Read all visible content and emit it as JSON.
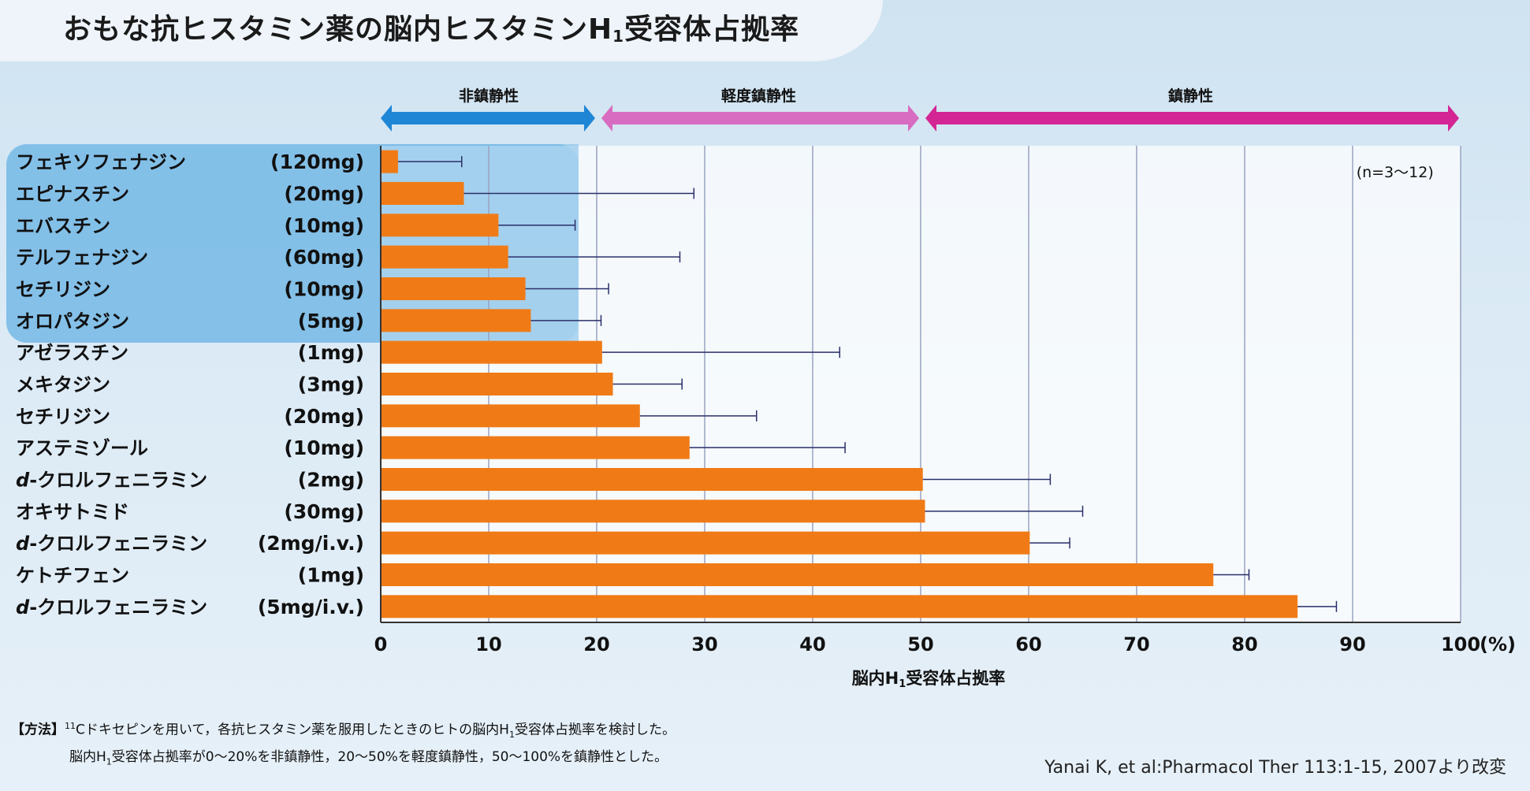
{
  "header": {
    "title_part1": "おもな抗ヒスタミン薬の脳内ヒスタミンH",
    "title_sub": "1",
    "title_part2": "受容体占拠率"
  },
  "chart_data": {
    "type": "bar",
    "orientation": "horizontal",
    "categories": [
      {
        "name": "フェキソフェナジン",
        "dose": "(120mg)",
        "italic_prefix": ""
      },
      {
        "name": "エピナスチン",
        "dose": "(20mg)",
        "italic_prefix": ""
      },
      {
        "name": "エバスチン",
        "dose": "(10mg)",
        "italic_prefix": ""
      },
      {
        "name": "テルフェナジン",
        "dose": "(60mg)",
        "italic_prefix": ""
      },
      {
        "name": "セチリジン",
        "dose": "(10mg)",
        "italic_prefix": ""
      },
      {
        "name": "オロパタジン",
        "dose": "(5mg)",
        "italic_prefix": ""
      },
      {
        "name": "アゼラスチン",
        "dose": "(1mg)",
        "italic_prefix": ""
      },
      {
        "name": "メキタジン",
        "dose": "(3mg)",
        "italic_prefix": ""
      },
      {
        "name": "セチリジン",
        "dose": "(20mg)",
        "italic_prefix": ""
      },
      {
        "name": "アステミゾール",
        "dose": "(10mg)",
        "italic_prefix": ""
      },
      {
        "name": "-クロルフェニラミン",
        "dose": "(2mg)",
        "italic_prefix": "d"
      },
      {
        "name": "オキサトミド",
        "dose": "(30mg)",
        "italic_prefix": ""
      },
      {
        "name": "-クロルフェニラミン",
        "dose": "(2mg/i.v.)",
        "italic_prefix": "d"
      },
      {
        "name": "ケトチフェン",
        "dose": "(1mg)",
        "italic_prefix": ""
      },
      {
        "name": "-クロルフェニラミン",
        "dose": "(5mg/i.v.)",
        "italic_prefix": "d"
      }
    ],
    "values": [
      1.6,
      7.7,
      10.9,
      11.8,
      13.4,
      13.9,
      20.5,
      21.5,
      24.0,
      28.6,
      50.2,
      50.4,
      60.1,
      77.1,
      84.9
    ],
    "error_upper": [
      7.5,
      29.0,
      18.0,
      27.7,
      21.1,
      20.4,
      42.5,
      27.9,
      34.8,
      43.0,
      62.0,
      65.0,
      63.8,
      80.4,
      88.5
    ],
    "highlighted_count": 6,
    "xlim": [
      0,
      100
    ],
    "x_ticks": [
      "0",
      "10",
      "20",
      "30",
      "40",
      "50",
      "60",
      "70",
      "80",
      "90",
      "100"
    ],
    "x_unit": "(%)",
    "xlabel_part1": "脳内H",
    "xlabel_sub": "1",
    "xlabel_part2": "受容体占拠率",
    "annotation": "(n=3〜12)",
    "ranges": [
      {
        "label": "非鎮静性",
        "from": 0,
        "to": 20,
        "color": "#1f86d6"
      },
      {
        "label": "軽度鎮静性",
        "from": 20,
        "to": 50,
        "color": "#d86cc0"
      },
      {
        "label": "鎮静性",
        "from": 50,
        "to": 100,
        "color": "#d42594"
      }
    ],
    "bar_color": "#f07b16",
    "highlight_color": "#74b8e5",
    "grid": "vertical"
  },
  "footer": {
    "method_tag": "【方法】",
    "method_sup": "11",
    "method_line1": "Cドキセピンを用いて，各抗ヒスタミン薬を服用したときのヒトの脳内H",
    "method_line1_sub": "1",
    "method_line1_end": "受容体占拠率を検討した。",
    "method_line2": "脳内H",
    "method_line2_sub": "1",
    "method_line2_end": "受容体占拠率が0〜20%を非鎮静性，20〜50%を軽度鎮静性，50〜100%を鎮静性とした。",
    "citation": "Yanai K, et al:Pharmacol Ther 113:1-15, 2007より改変"
  }
}
